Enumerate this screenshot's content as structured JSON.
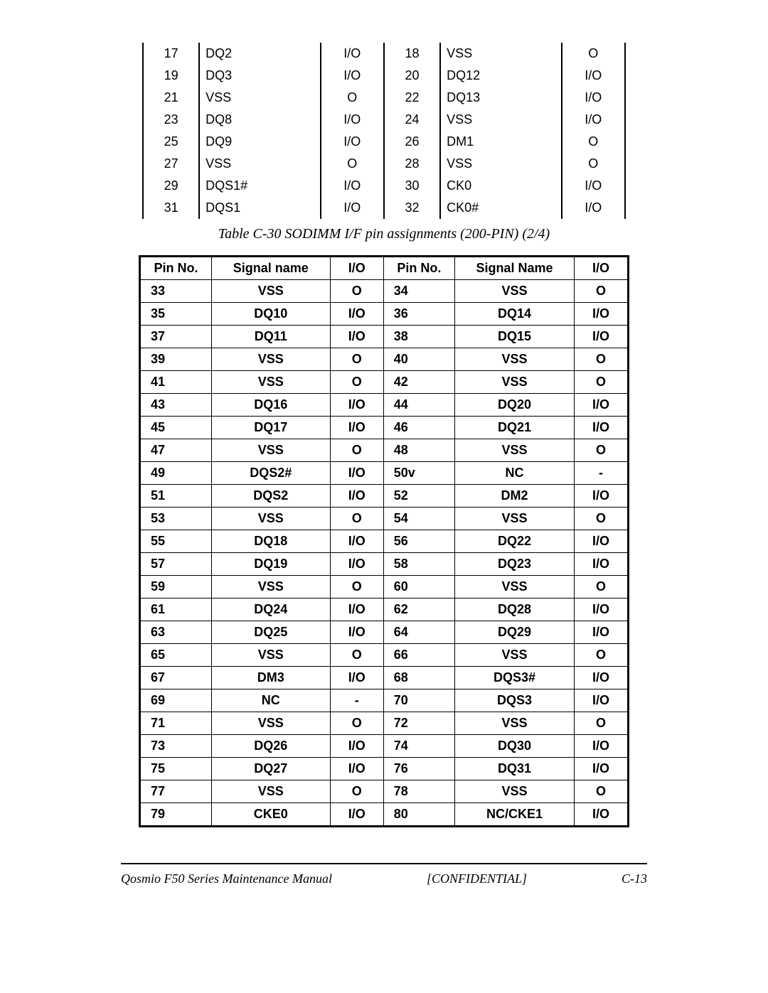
{
  "top_table": {
    "rows": [
      {
        "p1": "17",
        "n1": "DQ2",
        "io1": "I/O",
        "p2": "18",
        "n2": "VSS",
        "io2": "O"
      },
      {
        "p1": "19",
        "n1": "DQ3",
        "io1": "I/O",
        "p2": "20",
        "n2": "DQ12",
        "io2": "I/O"
      },
      {
        "p1": "21",
        "n1": "VSS",
        "io1": "O",
        "p2": "22",
        "n2": "DQ13",
        "io2": "I/O"
      },
      {
        "p1": "23",
        "n1": "DQ8",
        "io1": "I/O",
        "p2": "24",
        "n2": "VSS",
        "io2": "I/O"
      },
      {
        "p1": "25",
        "n1": "DQ9",
        "io1": "I/O",
        "p2": "26",
        "n2": "DM1",
        "io2": "O"
      },
      {
        "p1": "27",
        "n1": "VSS",
        "io1": "O",
        "p2": "28",
        "n2": "VSS",
        "io2": "O"
      },
      {
        "p1": "29",
        "n1": "DQS1#",
        "io1": "I/O",
        "p2": "30",
        "n2": "CK0",
        "io2": "I/O"
      },
      {
        "p1": "31",
        "n1": "DQS1",
        "io1": "I/O",
        "p2": "32",
        "n2": "CK0#",
        "io2": "I/O"
      }
    ]
  },
  "caption": "Table C-30  SODIMM I/F pin assignments (200-PIN) (2/4)",
  "main_table": {
    "headers": {
      "h1": "Pin No.",
      "h2": "Signal name",
      "h3": "I/O",
      "h4": "Pin No.",
      "h5": "Signal Name",
      "h6": "I/O"
    },
    "rows": [
      {
        "p1": "33",
        "n1": "VSS",
        "io1": "O",
        "p2": "34",
        "n2": "VSS",
        "io2": "O"
      },
      {
        "p1": "35",
        "n1": "DQ10",
        "io1": "I/O",
        "p2": "36",
        "n2": "DQ14",
        "io2": "I/O"
      },
      {
        "p1": "37",
        "n1": "DQ11",
        "io1": "I/O",
        "p2": "38",
        "n2": "DQ15",
        "io2": "I/O"
      },
      {
        "p1": "39",
        "n1": "VSS",
        "io1": "O",
        "p2": "40",
        "n2": "VSS",
        "io2": "O"
      },
      {
        "p1": "41",
        "n1": "VSS",
        "io1": "O",
        "p2": "42",
        "n2": "VSS",
        "io2": "O"
      },
      {
        "p1": "43",
        "n1": "DQ16",
        "io1": "I/O",
        "p2": "44",
        "n2": "DQ20",
        "io2": "I/O"
      },
      {
        "p1": "45",
        "n1": "DQ17",
        "io1": "I/O",
        "p2": "46",
        "n2": "DQ21",
        "io2": "I/O"
      },
      {
        "p1": "47",
        "n1": "VSS",
        "io1": "O",
        "p2": "48",
        "n2": "VSS",
        "io2": "O"
      },
      {
        "p1": "49",
        "n1": "DQS2#",
        "io1": "I/O",
        "p2": "50v",
        "n2": "NC",
        "io2": "-"
      },
      {
        "p1": "51",
        "n1": "DQS2",
        "io1": "I/O",
        "p2": "52",
        "n2": "DM2",
        "io2": "I/O"
      },
      {
        "p1": "53",
        "n1": "VSS",
        "io1": "O",
        "p2": "54",
        "n2": "VSS",
        "io2": "O"
      },
      {
        "p1": "55",
        "n1": "DQ18",
        "io1": "I/O",
        "p2": "56",
        "n2": "DQ22",
        "io2": "I/O"
      },
      {
        "p1": "57",
        "n1": "DQ19",
        "io1": "I/O",
        "p2": "58",
        "n2": "DQ23",
        "io2": "I/O"
      },
      {
        "p1": "59",
        "n1": "VSS",
        "io1": "O",
        "p2": "60",
        "n2": "VSS",
        "io2": "O"
      },
      {
        "p1": "61",
        "n1": "DQ24",
        "io1": "I/O",
        "p2": "62",
        "n2": "DQ28",
        "io2": "I/O"
      },
      {
        "p1": "63",
        "n1": "DQ25",
        "io1": "I/O",
        "p2": "64",
        "n2": "DQ29",
        "io2": "I/O"
      },
      {
        "p1": "65",
        "n1": "VSS",
        "io1": "O",
        "p2": "66",
        "n2": "VSS",
        "io2": "O"
      },
      {
        "p1": "67",
        "n1": "DM3",
        "io1": "I/O",
        "p2": "68",
        "n2": "DQS3#",
        "io2": "I/O"
      },
      {
        "p1": "69",
        "n1": "NC",
        "io1": "-",
        "p2": "70",
        "n2": "DQS3",
        "io2": "I/O"
      },
      {
        "p1": "71",
        "n1": "VSS",
        "io1": "O",
        "p2": "72",
        "n2": "VSS",
        "io2": "O"
      },
      {
        "p1": "73",
        "n1": "DQ26",
        "io1": "I/O",
        "p2": "74",
        "n2": "DQ30",
        "io2": "I/O"
      },
      {
        "p1": "75",
        "n1": "DQ27",
        "io1": "I/O",
        "p2": "76",
        "n2": "DQ31",
        "io2": "I/O"
      },
      {
        "p1": "77",
        "n1": "VSS",
        "io1": "O",
        "p2": "78",
        "n2": "VSS",
        "io2": "O"
      },
      {
        "p1": "79",
        "n1": "CKE0",
        "io1": "I/O",
        "p2": "80",
        "n2": "NC/CKE1",
        "io2": "I/O"
      }
    ]
  },
  "footer": {
    "left": "Qosmio F50 Series Maintenance Manual",
    "center": "[CONFIDENTIAL]",
    "right": "C-13"
  }
}
